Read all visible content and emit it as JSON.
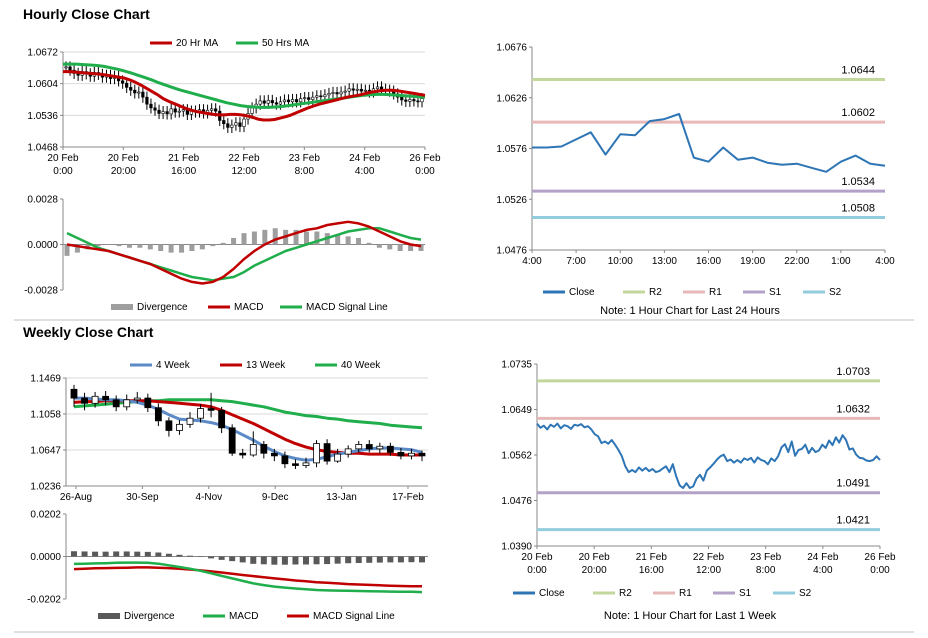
{
  "sections": {
    "hourly_title": "Hourly Close Chart",
    "weekly_title": "Weekly Close Chart"
  },
  "chart_data": [
    {
      "id": "hourly-candles",
      "type": "candlestick",
      "legend": [
        {
          "name": "20 Hr MA",
          "color": "#c00000"
        },
        {
          "name": "50 Hrs MA",
          "color": "#1fae4b"
        }
      ],
      "y_ticks": [
        "1.0672",
        "1.0604",
        "1.0536",
        "1.0468"
      ],
      "ylim": [
        1.0468,
        1.0672
      ],
      "x_ticks": [
        [
          "20 Feb",
          "0:00"
        ],
        [
          "20 Feb",
          "20:00"
        ],
        [
          "21 Feb",
          "16:00"
        ],
        [
          "22 Feb",
          "12:00"
        ],
        [
          "23 Feb",
          "8:00"
        ],
        [
          "24 Feb",
          "4:00"
        ],
        [
          "26 Feb",
          "0:00"
        ]
      ],
      "close": [
        1.064,
        1.0633,
        1.0626,
        1.0622,
        1.063,
        1.0625,
        1.062,
        1.0628,
        1.0624,
        1.0618,
        1.0622,
        1.0615,
        1.062,
        1.061,
        1.0605,
        1.0596,
        1.059,
        1.0584,
        1.0586,
        1.0575,
        1.056,
        1.0552,
        1.0547,
        1.054,
        1.0544,
        1.0539,
        1.055,
        1.0543,
        1.0545,
        1.0548,
        1.0538,
        1.0545,
        1.0543,
        1.0548,
        1.0541,
        1.0547,
        1.055,
        1.0545,
        1.0525,
        1.0518,
        1.051,
        1.0515,
        1.052,
        1.0512,
        1.0528,
        1.054,
        1.0552,
        1.056,
        1.0567,
        1.0562,
        1.0568,
        1.0563,
        1.056,
        1.0565,
        1.0569,
        1.0565,
        1.057,
        1.0565,
        1.0572,
        1.0574,
        1.057,
        1.0575,
        1.0578,
        1.0576,
        1.058,
        1.0583,
        1.0585,
        1.0582,
        1.0586,
        1.0588,
        1.0593,
        1.059,
        1.0592,
        1.0588,
        1.059,
        1.0586,
        1.0593,
        1.0597,
        1.0592,
        1.059,
        1.0588,
        1.0582,
        1.0575,
        1.0569,
        1.0566,
        1.057,
        1.0567,
        1.0565,
        1.0572
      ],
      "ma20": [
        1.063,
        1.063,
        1.0629,
        1.0628,
        1.0627,
        1.0626,
        1.0625,
        1.0624,
        1.0622,
        1.062,
        1.0618,
        1.0616,
        1.0612,
        1.0607,
        1.0601,
        1.0594,
        1.0587,
        1.058,
        1.0572,
        1.0566,
        1.0561,
        1.0556,
        1.0551,
        1.0547,
        1.0544,
        1.0542,
        1.054,
        1.0538,
        1.0537,
        1.0537,
        1.0538,
        1.0538,
        1.0537,
        1.0535,
        1.0532,
        1.0528,
        1.0526,
        1.0526,
        1.0527,
        1.053,
        1.0533,
        1.0537,
        1.0542,
        1.0547,
        1.0552,
        1.0556,
        1.056,
        1.0563,
        1.0566,
        1.0569,
        1.0572,
        1.0575,
        1.0577,
        1.0579,
        1.0582,
        1.0585,
        1.0587,
        1.0589,
        1.059,
        1.059,
        1.0589,
        1.0587,
        1.0585,
        1.0583,
        1.0581,
        1.0579
      ],
      "ma50": [
        1.0646,
        1.0646,
        1.0646,
        1.0645,
        1.0644,
        1.0643,
        1.0641,
        1.0638,
        1.0635,
        1.0631,
        1.0627,
        1.0622,
        1.0617,
        1.0612,
        1.0606,
        1.0601,
        1.0596,
        1.0591,
        1.0587,
        1.0583,
        1.0579,
        1.0575,
        1.0571,
        1.0567,
        1.0563,
        1.056,
        1.0557,
        1.0555,
        1.0554,
        1.0553,
        1.0553,
        1.0554,
        1.0555,
        1.0557,
        1.0559,
        1.0561,
        1.0563,
        1.0565,
        1.0567,
        1.0569,
        1.0571,
        1.0573,
        1.0575,
        1.0577,
        1.0579,
        1.058,
        1.0581,
        1.0581,
        1.058,
        1.0579,
        1.0578,
        1.0577,
        1.0576,
        1.0575
      ]
    },
    {
      "id": "hourly-macd",
      "type": "macd",
      "legend": [
        {
          "name": "Divergence",
          "color": "#9e9e9e"
        },
        {
          "name": "MACD",
          "color": "#c00000"
        },
        {
          "name": "MACD Signal Line",
          "color": "#1fae4b"
        }
      ],
      "y_ticks": [
        "0.0028",
        "0.0000",
        "-0.0028"
      ],
      "ylim": [
        -0.0028,
        0.0028
      ],
      "macd": [
        0.0,
        -0.0001,
        -0.0002,
        -0.0003,
        -0.0004,
        -0.0006,
        -0.0008,
        -0.001,
        -0.0012,
        -0.0015,
        -0.0018,
        -0.0021,
        -0.0023,
        -0.0024,
        -0.0023,
        -0.002,
        -0.0015,
        -0.0009,
        -0.0004,
        0.0,
        0.0003,
        0.0005,
        0.0007,
        0.0009,
        0.001,
        0.0012,
        0.0013,
        0.0014,
        0.0013,
        0.0011,
        0.0008,
        0.0005,
        0.0002,
        0.0,
        -0.0001
      ],
      "signal": [
        0.0007,
        0.0004,
        0.0001,
        -0.0002,
        -0.0004,
        -0.0006,
        -0.0008,
        -0.001,
        -0.0012,
        -0.0014,
        -0.0016,
        -0.0018,
        -0.002,
        -0.0021,
        -0.0022,
        -0.0021,
        -0.002,
        -0.0017,
        -0.0013,
        -0.001,
        -0.0007,
        -0.0004,
        -0.0002,
        0.0,
        0.0002,
        0.0004,
        0.0006,
        0.0008,
        0.0009,
        0.001,
        0.001,
        0.0008,
        0.0006,
        0.0004,
        0.0003
      ],
      "divergence": [
        -0.0007,
        -0.0005,
        -0.0003,
        -0.0001,
        0.0,
        -0.0001,
        -0.0002,
        -0.0002,
        -0.0003,
        -0.0004,
        -0.0005,
        -0.0005,
        -0.0004,
        -0.0003,
        -0.0001,
        0.0001,
        0.0004,
        0.0007,
        0.0008,
        0.0009,
        0.001,
        0.0009,
        0.0009,
        0.0008,
        0.0008,
        0.0007,
        0.0006,
        0.0005,
        0.0004,
        0.0001,
        -0.0002,
        -0.0003,
        -0.0004,
        -0.0004,
        -0.0004
      ]
    },
    {
      "id": "hourly-line",
      "type": "line",
      "y_ticks": [
        "1.0676",
        "1.0626",
        "1.0576",
        "1.0526",
        "1.0476"
      ],
      "ylim": [
        1.0476,
        1.0676
      ],
      "x_ticks": [
        "4:00",
        "7:00",
        "10:00",
        "13:00",
        "16:00",
        "19:00",
        "22:00",
        "1:00",
        "4:00"
      ],
      "levels": [
        {
          "name": "R2",
          "value": 1.0644,
          "label": "1.0644",
          "color": "#c3d69b"
        },
        {
          "name": "R1",
          "value": 1.0602,
          "label": "1.0602",
          "color": "#e6b9b8"
        },
        {
          "name": "S1",
          "value": 1.0534,
          "label": "1.0534",
          "color": "#b3a2c7"
        },
        {
          "name": "S2",
          "value": 1.0508,
          "label": "1.0508",
          "color": "#93cddd"
        }
      ],
      "close": [
        1.0577,
        1.0577,
        1.0578,
        1.0585,
        1.0592,
        1.057,
        1.059,
        1.0589,
        1.0603,
        1.0605,
        1.061,
        1.0567,
        1.0563,
        1.0577,
        1.0565,
        1.0567,
        1.0562,
        1.056,
        1.0561,
        1.0557,
        1.0553,
        1.0563,
        1.0569,
        1.0561,
        1.0559
      ],
      "legend": [
        {
          "name": "Close",
          "color": "#2e75b6"
        },
        {
          "name": "R2",
          "color": "#c3d69b"
        },
        {
          "name": "R1",
          "color": "#e6b9b8"
        },
        {
          "name": "S1",
          "color": "#b3a2c7"
        },
        {
          "name": "S2",
          "color": "#93cddd"
        }
      ],
      "note": "Note: 1 Hour Chart for Last 24 Hours"
    },
    {
      "id": "weekly-candles",
      "type": "candlestick",
      "legend": [
        {
          "name": "4 Week",
          "color": "#5b8ac6"
        },
        {
          "name": "13 Week",
          "color": "#c00000"
        },
        {
          "name": "40 Week",
          "color": "#1fae4b"
        }
      ],
      "y_ticks": [
        "1.1469",
        "1.1058",
        "1.0647",
        "1.0236"
      ],
      "ylim": [
        1.0236,
        1.1469
      ],
      "x_ticks": [
        "26-Aug",
        "30-Sep",
        "4-Nov",
        "9-Dec",
        "13-Jan",
        "17-Feb"
      ],
      "candles": [
        [
          1.134,
          1.124,
          1.139,
          1.114
        ],
        [
          1.124,
          1.118,
          1.13,
          1.11
        ],
        [
          1.118,
          1.126,
          1.131,
          1.113
        ],
        [
          1.126,
          1.122,
          1.132,
          1.116
        ],
        [
          1.122,
          1.114,
          1.127,
          1.109
        ],
        [
          1.114,
          1.122,
          1.128,
          1.11
        ],
        [
          1.122,
          1.124,
          1.131,
          1.118
        ],
        [
          1.124,
          1.113,
          1.129,
          1.108
        ],
        [
          1.113,
          1.098,
          1.118,
          1.092
        ],
        [
          1.098,
          1.087,
          1.102,
          1.08
        ],
        [
          1.087,
          1.094,
          1.099,
          1.082
        ],
        [
          1.094,
          1.101,
          1.108,
          1.09
        ],
        [
          1.101,
          1.112,
          1.117,
          1.096
        ],
        [
          1.112,
          1.11,
          1.13,
          1.102
        ],
        [
          1.11,
          1.09,
          1.114,
          1.084
        ],
        [
          1.09,
          1.061,
          1.094,
          1.058
        ],
        [
          1.061,
          1.059,
          1.066,
          1.055
        ],
        [
          1.059,
          1.071,
          1.086,
          1.057
        ],
        [
          1.071,
          1.061,
          1.075,
          1.055
        ],
        [
          1.061,
          1.058,
          1.066,
          1.052
        ],
        [
          1.058,
          1.049,
          1.063,
          1.044
        ],
        [
          1.049,
          1.047,
          1.054,
          1.043
        ],
        [
          1.047,
          1.05,
          1.056,
          1.044
        ],
        [
          1.05,
          1.072,
          1.076,
          1.045
        ],
        [
          1.072,
          1.052,
          1.077,
          1.048
        ],
        [
          1.052,
          1.06,
          1.066,
          1.05
        ],
        [
          1.06,
          1.066,
          1.07,
          1.056
        ],
        [
          1.066,
          1.071,
          1.075,
          1.062
        ],
        [
          1.071,
          1.066,
          1.076,
          1.062
        ],
        [
          1.066,
          1.069,
          1.073,
          1.061
        ],
        [
          1.069,
          1.062,
          1.073,
          1.058
        ],
        [
          1.062,
          1.058,
          1.067,
          1.054
        ],
        [
          1.058,
          1.061,
          1.066,
          1.054
        ],
        [
          1.061,
          1.058,
          1.064,
          1.052
        ]
      ],
      "ma4": [
        1.124,
        1.124,
        1.123,
        1.122,
        1.122,
        1.121,
        1.119,
        1.116,
        1.111,
        1.105,
        1.1,
        1.099,
        1.098,
        1.096,
        1.093,
        1.088,
        1.082,
        1.076,
        1.069,
        1.063,
        1.058,
        1.055,
        1.053,
        1.054,
        1.057,
        1.06,
        1.062,
        1.064,
        1.066,
        1.067,
        1.067,
        1.066,
        1.065,
        1.062
      ],
      "ma13": [
        1.119,
        1.12,
        1.12,
        1.121,
        1.121,
        1.121,
        1.121,
        1.121,
        1.12,
        1.119,
        1.118,
        1.117,
        1.116,
        1.114,
        1.11,
        1.105,
        1.1,
        1.095,
        1.089,
        1.083,
        1.077,
        1.072,
        1.068,
        1.065,
        1.063,
        1.062,
        1.061,
        1.061,
        1.06,
        1.06,
        1.06,
        1.059,
        1.059,
        1.059
      ],
      "ma40": [
        1.114,
        1.115,
        1.116,
        1.117,
        1.118,
        1.119,
        1.12,
        1.121,
        1.121,
        1.122,
        1.122,
        1.122,
        1.122,
        1.122,
        1.121,
        1.12,
        1.118,
        1.116,
        1.114,
        1.111,
        1.108,
        1.106,
        1.104,
        1.103,
        1.101,
        1.1,
        1.098,
        1.097,
        1.096,
        1.095,
        1.093,
        1.092,
        1.091,
        1.09
      ]
    },
    {
      "id": "weekly-macd",
      "type": "macd",
      "legend": [
        {
          "name": "Divergence",
          "color": "#595959"
        },
        {
          "name": "MACD",
          "color": "#1fae4b"
        },
        {
          "name": "MACD Signal Line",
          "color": "#c00000"
        }
      ],
      "y_ticks": [
        "0.0202",
        "0.0000",
        "-0.0202"
      ],
      "ylim": [
        -0.0202,
        0.0202
      ],
      "macd": [
        -0.0035,
        -0.0034,
        -0.0033,
        -0.0032,
        -0.003,
        -0.0029,
        -0.0029,
        -0.003,
        -0.0034,
        -0.0042,
        -0.005,
        -0.0058,
        -0.0068,
        -0.008,
        -0.0092,
        -0.0104,
        -0.0116,
        -0.0128,
        -0.0136,
        -0.0143,
        -0.0148,
        -0.0152,
        -0.0156,
        -0.0159,
        -0.0161,
        -0.0162,
        -0.0163,
        -0.0164,
        -0.0165,
        -0.0166,
        -0.0167,
        -0.0168,
        -0.0168,
        -0.0169
      ],
      "signal": [
        -0.006,
        -0.0058,
        -0.0056,
        -0.0055,
        -0.0054,
        -0.0053,
        -0.0052,
        -0.0052,
        -0.0053,
        -0.0055,
        -0.0058,
        -0.0062,
        -0.0066,
        -0.0071,
        -0.0076,
        -0.0082,
        -0.0088,
        -0.0093,
        -0.0099,
        -0.0104,
        -0.0109,
        -0.0114,
        -0.0118,
        -0.0122,
        -0.0125,
        -0.0128,
        -0.0131,
        -0.0133,
        -0.0135,
        -0.0137,
        -0.0139,
        -0.014,
        -0.0141,
        -0.0141
      ],
      "divergence": [
        0.0025,
        0.0024,
        0.0023,
        0.0023,
        0.0024,
        0.0024,
        0.0023,
        0.0022,
        0.0019,
        0.0013,
        0.0008,
        0.0004,
        0.0002,
        -0.0009,
        -0.0016,
        -0.0022,
        -0.0028,
        -0.0035,
        -0.0037,
        -0.0039,
        -0.0039,
        -0.0038,
        -0.0038,
        -0.0037,
        -0.0036,
        -0.0034,
        -0.0032,
        -0.0031,
        -0.003,
        -0.0029,
        -0.0028,
        -0.0028,
        -0.0027,
        -0.0028
      ]
    },
    {
      "id": "weekly-line",
      "type": "line",
      "y_ticks": [
        "1.0735",
        "1.0649",
        "1.0562",
        "1.0476",
        "1.0390"
      ],
      "ylim": [
        1.039,
        1.0735
      ],
      "x_ticks": [
        [
          "20 Feb",
          "0:00"
        ],
        [
          "20 Feb",
          "20:00"
        ],
        [
          "21 Feb",
          "16:00"
        ],
        [
          "22 Feb",
          "12:00"
        ],
        [
          "23 Feb",
          "8:00"
        ],
        [
          "24 Feb",
          "4:00"
        ],
        [
          "26 Feb",
          "0:00"
        ]
      ],
      "levels": [
        {
          "name": "R2",
          "value": 1.0703,
          "label": "1.0703",
          "color": "#c3d69b"
        },
        {
          "name": "R1",
          "value": 1.0632,
          "label": "1.0632",
          "color": "#e6b9b8"
        },
        {
          "name": "S1",
          "value": 1.0491,
          "label": "1.0491",
          "color": "#b3a2c7"
        },
        {
          "name": "S2",
          "value": 1.0421,
          "label": "1.0421",
          "color": "#93cddd"
        }
      ],
      "close": [
        1.0622,
        1.0614,
        1.0618,
        1.0611,
        1.062,
        1.0616,
        1.0622,
        1.0613,
        1.0619,
        1.0617,
        1.0612,
        1.062,
        1.0618,
        1.0621,
        1.0615,
        1.0617,
        1.0611,
        1.0602,
        1.0598,
        1.0585,
        1.0588,
        1.0584,
        1.0591,
        1.0582,
        1.0572,
        1.056,
        1.0541,
        1.053,
        1.0534,
        1.053,
        1.0539,
        1.0533,
        1.0538,
        1.0532,
        1.0536,
        1.053,
        1.0532,
        1.0537,
        1.0541,
        1.053,
        1.0545,
        1.0522,
        1.0505,
        1.05,
        1.0509,
        1.05,
        1.0503,
        1.0518,
        1.0525,
        1.0514,
        1.0533,
        1.0539,
        1.0546,
        1.0554,
        1.056,
        1.0563,
        1.0551,
        1.0554,
        1.0548,
        1.0553,
        1.0548,
        1.0556,
        1.0553,
        1.0557,
        1.0548,
        1.0558,
        1.0553,
        1.0551,
        1.0545,
        1.0556,
        1.0551,
        1.056,
        1.0577,
        1.0583,
        1.0568,
        1.0588,
        1.0561,
        1.0572,
        1.0574,
        1.0582,
        1.0566,
        1.0576,
        1.0568,
        1.0571,
        1.0582,
        1.0576,
        1.059,
        1.0581,
        1.0596,
        1.0586,
        1.06,
        1.0591,
        1.0573,
        1.0575,
        1.0563,
        1.0557,
        1.0556,
        1.0552,
        1.0551,
        1.0553,
        1.056,
        1.0553
      ],
      "legend": [
        {
          "name": "Close",
          "color": "#2e75b6"
        },
        {
          "name": "R2",
          "color": "#c3d69b"
        },
        {
          "name": "R1",
          "color": "#e6b9b8"
        },
        {
          "name": "S1",
          "color": "#b3a2c7"
        },
        {
          "name": "S2",
          "color": "#93cddd"
        }
      ],
      "note": "Note: 1 Hour Chart for Last 1 Week"
    }
  ]
}
